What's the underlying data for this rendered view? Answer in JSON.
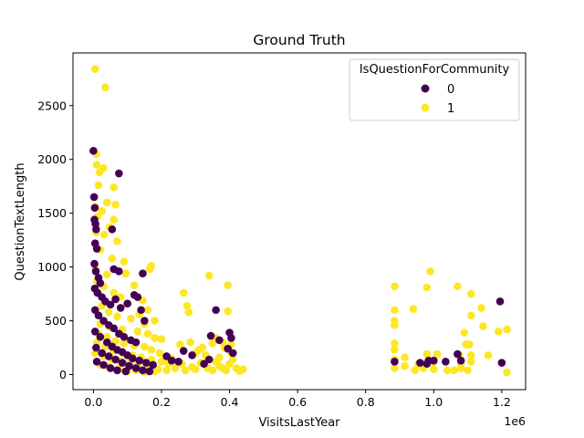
{
  "chart_data": {
    "type": "scatter",
    "title": "Ground Truth",
    "xlabel": "VisitsLastYear",
    "ylabel": "QuestionTextLength",
    "x_offset_text": "1e6",
    "xlim": [
      -60000,
      1270000
    ],
    "ylim": [
      -140,
      2990
    ],
    "x_ticks": [
      0,
      200000,
      400000,
      600000,
      800000,
      1000000,
      1200000
    ],
    "x_tick_labels": [
      "0.0",
      "0.2",
      "0.4",
      "0.6",
      "0.8",
      "1.0",
      "1.2"
    ],
    "y_ticks": [
      0,
      500,
      1000,
      1500,
      2000,
      2500
    ],
    "y_tick_labels": [
      "0",
      "500",
      "1000",
      "1500",
      "2000",
      "2500"
    ],
    "grid": false,
    "legend": {
      "title": "IsQuestionForCommunity",
      "placement": "upper-right",
      "entries": [
        {
          "label": "0",
          "color": "#440154"
        },
        {
          "label": "1",
          "color": "#fde725"
        }
      ]
    },
    "series": [
      {
        "name": "1",
        "color": "#fde725",
        "points": [
          [
            5000,
            2840
          ],
          [
            35000,
            2670
          ],
          [
            8000,
            2050
          ],
          [
            10000,
            1950
          ],
          [
            30000,
            1920
          ],
          [
            18000,
            1880
          ],
          [
            60000,
            1740
          ],
          [
            15000,
            1760
          ],
          [
            40000,
            1600
          ],
          [
            65000,
            1580
          ],
          [
            5000,
            1560
          ],
          [
            25000,
            1520
          ],
          [
            60000,
            1440
          ],
          [
            12000,
            1470
          ],
          [
            48000,
            1370
          ],
          [
            8000,
            1320
          ],
          [
            32000,
            1300
          ],
          [
            70000,
            1240
          ],
          [
            20000,
            1160
          ],
          [
            55000,
            1080
          ],
          [
            90000,
            1050
          ],
          [
            170000,
            1010
          ],
          [
            165000,
            980
          ],
          [
            6000,
            990
          ],
          [
            40000,
            930
          ],
          [
            95000,
            940
          ],
          [
            120000,
            830
          ],
          [
            145000,
            690
          ],
          [
            160000,
            600
          ],
          [
            180000,
            500
          ],
          [
            10000,
            870
          ],
          [
            30000,
            820
          ],
          [
            60000,
            760
          ],
          [
            80000,
            720
          ],
          [
            100000,
            660
          ],
          [
            25000,
            640
          ],
          [
            45000,
            580
          ],
          [
            70000,
            540
          ],
          [
            110000,
            520
          ],
          [
            135000,
            560
          ],
          [
            150000,
            470
          ],
          [
            20000,
            470
          ],
          [
            50000,
            440
          ],
          [
            85000,
            420
          ],
          [
            130000,
            400
          ],
          [
            160000,
            380
          ],
          [
            180000,
            340
          ],
          [
            200000,
            330
          ],
          [
            15000,
            380
          ],
          [
            40000,
            350
          ],
          [
            65000,
            310
          ],
          [
            90000,
            290
          ],
          [
            120000,
            270
          ],
          [
            150000,
            260
          ],
          [
            170000,
            230
          ],
          [
            195000,
            200
          ],
          [
            10000,
            300
          ],
          [
            35000,
            260
          ],
          [
            60000,
            220
          ],
          [
            85000,
            200
          ],
          [
            115000,
            180
          ],
          [
            140000,
            160
          ],
          [
            170000,
            140
          ],
          [
            200000,
            120
          ],
          [
            220000,
            100
          ],
          [
            5000,
            200
          ],
          [
            30000,
            170
          ],
          [
            55000,
            140
          ],
          [
            80000,
            120
          ],
          [
            105000,
            100
          ],
          [
            130000,
            80
          ],
          [
            160000,
            60
          ],
          [
            190000,
            50
          ],
          [
            215000,
            40
          ],
          [
            240000,
            60
          ],
          [
            20000,
            90
          ],
          [
            45000,
            70
          ],
          [
            75000,
            50
          ],
          [
            100000,
            30
          ],
          [
            125000,
            40
          ],
          [
            150000,
            20
          ],
          [
            180000,
            30
          ],
          [
            230000,
            150
          ],
          [
            255000,
            280
          ],
          [
            265000,
            760
          ],
          [
            275000,
            640
          ],
          [
            280000,
            580
          ],
          [
            340000,
            920
          ],
          [
            395000,
            830
          ],
          [
            395000,
            590
          ],
          [
            260000,
            100
          ],
          [
            270000,
            40
          ],
          [
            290000,
            70
          ],
          [
            300000,
            200
          ],
          [
            310000,
            230
          ],
          [
            320000,
            250
          ],
          [
            330000,
            180
          ],
          [
            350000,
            290
          ],
          [
            360000,
            120
          ],
          [
            370000,
            80
          ],
          [
            380000,
            60
          ],
          [
            390000,
            40
          ],
          [
            400000,
            100
          ],
          [
            405000,
            280
          ],
          [
            410000,
            140
          ],
          [
            420000,
            60
          ],
          [
            430000,
            30
          ],
          [
            440000,
            50
          ],
          [
            350000,
            40
          ],
          [
            370000,
            160
          ],
          [
            335000,
            60
          ],
          [
            315000,
            110
          ],
          [
            285000,
            300
          ],
          [
            300000,
            50
          ],
          [
            385000,
            250
          ],
          [
            360000,
            340
          ],
          [
            405000,
            200
          ],
          [
            380000,
            300
          ],
          [
            885000,
            820
          ],
          [
            885000,
            600
          ],
          [
            885000,
            500
          ],
          [
            885000,
            460
          ],
          [
            885000,
            290
          ],
          [
            885000,
            230
          ],
          [
            885000,
            140
          ],
          [
            885000,
            60
          ],
          [
            915000,
            160
          ],
          [
            915000,
            80
          ],
          [
            940000,
            610
          ],
          [
            945000,
            40
          ],
          [
            955000,
            90
          ],
          [
            980000,
            810
          ],
          [
            980000,
            190
          ],
          [
            990000,
            960
          ],
          [
            1010000,
            190
          ],
          [
            1000000,
            120
          ],
          [
            1060000,
            40
          ],
          [
            1070000,
            820
          ],
          [
            1075000,
            180
          ],
          [
            1080000,
            100
          ],
          [
            1090000,
            390
          ],
          [
            1095000,
            280
          ],
          [
            1100000,
            40
          ],
          [
            1110000,
            750
          ],
          [
            1110000,
            550
          ],
          [
            1105000,
            280
          ],
          [
            1110000,
            180
          ],
          [
            1110000,
            120
          ],
          [
            1140000,
            620
          ],
          [
            1145000,
            450
          ],
          [
            1160000,
            180
          ],
          [
            1190000,
            400
          ],
          [
            1215000,
            420
          ],
          [
            1215000,
            20
          ],
          [
            1080000,
            60
          ],
          [
            1040000,
            40
          ],
          [
            970000,
            60
          ],
          [
            955000,
            100
          ],
          [
            1000000,
            50
          ]
        ]
      },
      {
        "name": "0",
        "color": "#440154",
        "points": [
          [
            0,
            2080
          ],
          [
            75000,
            1870
          ],
          [
            55000,
            1350
          ],
          [
            2000,
            1650
          ],
          [
            4000,
            1550
          ],
          [
            3000,
            1440
          ],
          [
            6000,
            1400
          ],
          [
            8000,
            1350
          ],
          [
            5000,
            1220
          ],
          [
            10000,
            1170
          ],
          [
            3000,
            1030
          ],
          [
            7000,
            960
          ],
          [
            15000,
            900
          ],
          [
            20000,
            850
          ],
          [
            60000,
            980
          ],
          [
            75000,
            960
          ],
          [
            145000,
            940
          ],
          [
            4000,
            800
          ],
          [
            12000,
            760
          ],
          [
            25000,
            720
          ],
          [
            35000,
            680
          ],
          [
            50000,
            650
          ],
          [
            65000,
            700
          ],
          [
            80000,
            620
          ],
          [
            100000,
            660
          ],
          [
            120000,
            740
          ],
          [
            130000,
            720
          ],
          [
            140000,
            600
          ],
          [
            150000,
            500
          ],
          [
            5000,
            600
          ],
          [
            15000,
            550
          ],
          [
            30000,
            500
          ],
          [
            45000,
            460
          ],
          [
            60000,
            430
          ],
          [
            75000,
            380
          ],
          [
            90000,
            350
          ],
          [
            110000,
            320
          ],
          [
            125000,
            300
          ],
          [
            5000,
            400
          ],
          [
            20000,
            350
          ],
          [
            40000,
            300
          ],
          [
            55000,
            260
          ],
          [
            70000,
            230
          ],
          [
            85000,
            210
          ],
          [
            100000,
            180
          ],
          [
            115000,
            150
          ],
          [
            135000,
            130
          ],
          [
            155000,
            110
          ],
          [
            175000,
            90
          ],
          [
            8000,
            250
          ],
          [
            25000,
            200
          ],
          [
            45000,
            170
          ],
          [
            65000,
            140
          ],
          [
            85000,
            110
          ],
          [
            105000,
            80
          ],
          [
            125000,
            60
          ],
          [
            145000,
            40
          ],
          [
            165000,
            30
          ],
          [
            10000,
            120
          ],
          [
            30000,
            90
          ],
          [
            50000,
            60
          ],
          [
            70000,
            40
          ],
          [
            95000,
            30
          ],
          [
            215000,
            170
          ],
          [
            230000,
            130
          ],
          [
            250000,
            120
          ],
          [
            265000,
            220
          ],
          [
            290000,
            180
          ],
          [
            360000,
            600
          ],
          [
            400000,
            390
          ],
          [
            345000,
            360
          ],
          [
            370000,
            320
          ],
          [
            405000,
            340
          ],
          [
            395000,
            240
          ],
          [
            410000,
            200
          ],
          [
            325000,
            100
          ],
          [
            340000,
            140
          ],
          [
            885000,
            120
          ],
          [
            960000,
            110
          ],
          [
            985000,
            130
          ],
          [
            1000000,
            130
          ],
          [
            1035000,
            120
          ],
          [
            1070000,
            190
          ],
          [
            1080000,
            130
          ],
          [
            1195000,
            680
          ],
          [
            1200000,
            110
          ],
          [
            980000,
            100
          ]
        ]
      }
    ]
  }
}
